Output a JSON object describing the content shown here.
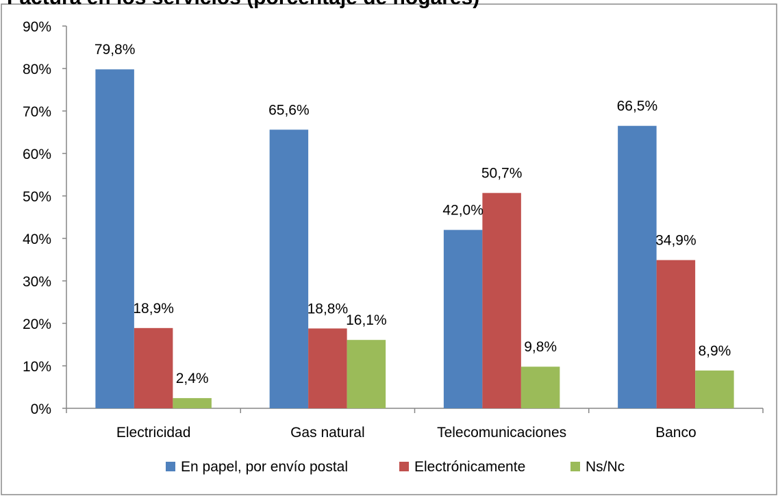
{
  "chart_data": {
    "type": "bar",
    "title": "Factura en los servicios (porcentaje de hogares)",
    "categories": [
      "Electricidad",
      "Gas natural",
      "Telecomunicaciones",
      "Banco"
    ],
    "series": [
      {
        "name": "En papel, por envío postal",
        "color": "#4F81BD",
        "values": [
          79.8,
          65.6,
          42.0,
          66.5
        ],
        "labels": [
          "79,8%",
          "65,6%",
          "42,0%",
          "66,5%"
        ]
      },
      {
        "name": "Electrónicamente",
        "color": "#C0504D",
        "values": [
          18.9,
          18.8,
          50.7,
          34.9
        ],
        "labels": [
          "18,9%",
          "18,8%",
          "50,7%",
          "34,9%"
        ]
      },
      {
        "name": "Ns/Nc",
        "color": "#9BBB59",
        "values": [
          2.4,
          16.1,
          9.8,
          8.9
        ],
        "labels": [
          "2,4%",
          "16,1%",
          "9,8%",
          "8,9%"
        ]
      }
    ],
    "ylim": [
      0,
      90
    ],
    "yticks": [
      0,
      10,
      20,
      30,
      40,
      50,
      60,
      70,
      80,
      90
    ],
    "ytick_labels": [
      "0%",
      "10%",
      "20%",
      "30%",
      "40%",
      "50%",
      "60%",
      "70%",
      "80%",
      "90%"
    ],
    "xlabel": "",
    "ylabel": "",
    "grid": false,
    "legend_position": "bottom"
  }
}
